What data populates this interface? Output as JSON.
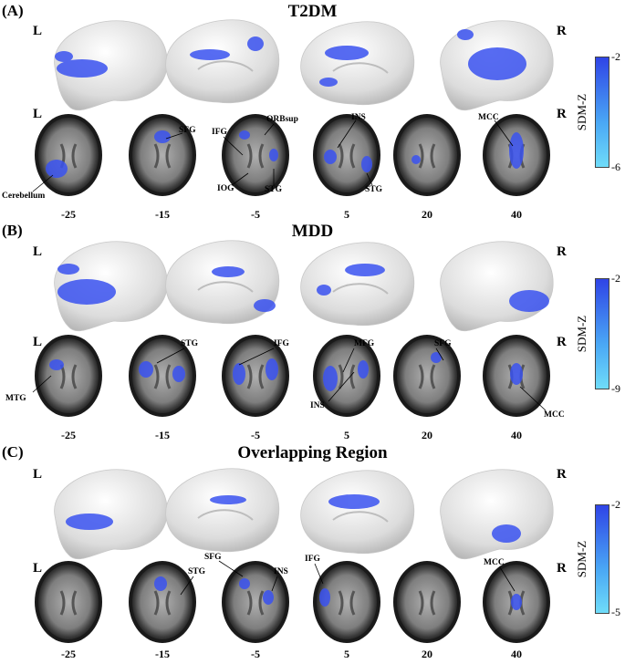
{
  "panels": [
    {
      "letter": "(A)",
      "title": "T2DM",
      "left": "L",
      "right": "R",
      "slices": [
        "-25",
        "-15",
        "-5",
        "5",
        "20",
        "40"
      ],
      "labels": [
        "Cerebellum",
        "SFG",
        "IFG",
        "ORBsup",
        "IOG",
        "STG",
        "INS",
        "STG",
        "MCC"
      ],
      "colorbar": {
        "name": "SDM-Z",
        "max": "-2",
        "min": "-6"
      }
    },
    {
      "letter": "(B)",
      "title": "MDD",
      "left": "L",
      "right": "R",
      "slices": [
        "-25",
        "-15",
        "-5",
        "5",
        "20",
        "40"
      ],
      "labels": [
        "MTG",
        "STG",
        "IFG",
        "MFG",
        "INS",
        "SFG",
        "MCC"
      ],
      "colorbar": {
        "name": "SDM-Z",
        "max": "-2",
        "min": "-9"
      }
    },
    {
      "letter": "(C)",
      "title": "Overlapping Region",
      "left": "L",
      "right": "R",
      "slices": [
        "-25",
        "-15",
        "-5",
        "5",
        "20",
        "40"
      ],
      "labels": [
        "STG",
        "SFG",
        "INS",
        "IFG",
        "MCC"
      ],
      "colorbar": {
        "name": "SDM-Z",
        "max": "-2",
        "min": "-5"
      }
    }
  ],
  "colors": {
    "activation": "#3a52f0",
    "brain": "#e6e6e6",
    "slice": "#8a8a8a"
  }
}
